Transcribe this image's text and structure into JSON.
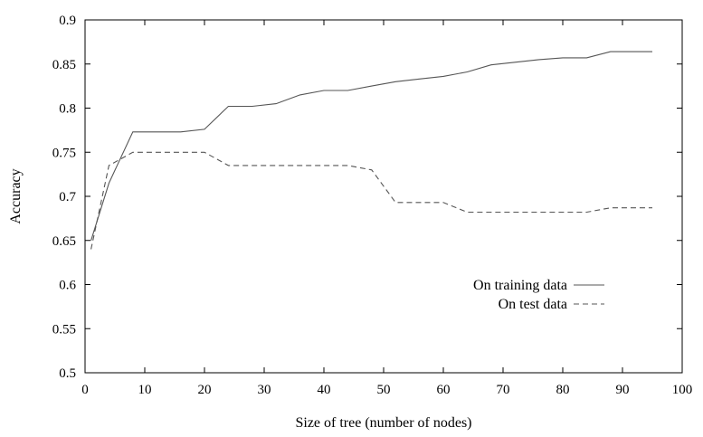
{
  "chart_data": {
    "type": "line",
    "title": "",
    "xlabel": "Size of tree (number of nodes)",
    "ylabel": "Accuracy",
    "xlim": [
      0,
      100
    ],
    "ylim": [
      0.5,
      0.9
    ],
    "x_ticks": [
      0,
      10,
      20,
      30,
      40,
      50,
      60,
      70,
      80,
      90,
      100
    ],
    "y_ticks": [
      0.5,
      0.55,
      0.6,
      0.65,
      0.7,
      0.75,
      0.8,
      0.85,
      0.9
    ],
    "x_tick_labels": [
      "0",
      "10",
      "20",
      "30",
      "40",
      "50",
      "60",
      "70",
      "80",
      "90",
      "100"
    ],
    "y_tick_labels": [
      "0.5",
      "0.55",
      "0.6",
      "0.65",
      "0.7",
      "0.75",
      "0.8",
      "0.85",
      "0.9"
    ],
    "grid": false,
    "legend_position": "right",
    "series": [
      {
        "name": "On training data",
        "style": "solid",
        "color": "#555555",
        "x": [
          1,
          4,
          8,
          12,
          16,
          20,
          24,
          28,
          32,
          36,
          40,
          44,
          48,
          52,
          56,
          60,
          64,
          68,
          72,
          76,
          80,
          84,
          88,
          92,
          95
        ],
        "y": [
          0.65,
          0.715,
          0.773,
          0.773,
          0.773,
          0.776,
          0.802,
          0.802,
          0.805,
          0.815,
          0.82,
          0.82,
          0.825,
          0.83,
          0.833,
          0.836,
          0.841,
          0.849,
          0.852,
          0.855,
          0.857,
          0.857,
          0.864,
          0.864,
          0.864
        ]
      },
      {
        "name": "On test data",
        "style": "dashed",
        "color": "#555555",
        "x": [
          1,
          4,
          8,
          12,
          16,
          20,
          24,
          28,
          32,
          36,
          40,
          44,
          48,
          52,
          56,
          60,
          64,
          68,
          72,
          76,
          80,
          84,
          88,
          92,
          95
        ],
        "y": [
          0.64,
          0.735,
          0.75,
          0.75,
          0.75,
          0.75,
          0.735,
          0.735,
          0.735,
          0.735,
          0.735,
          0.735,
          0.73,
          0.693,
          0.693,
          0.693,
          0.682,
          0.682,
          0.682,
          0.682,
          0.682,
          0.682,
          0.687,
          0.687,
          0.687
        ]
      }
    ]
  }
}
